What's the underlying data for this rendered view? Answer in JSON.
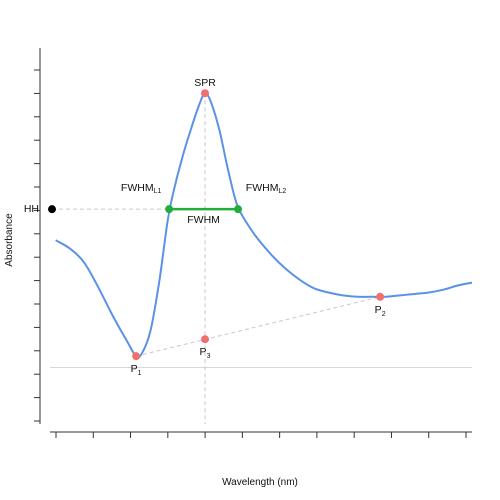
{
  "chart_data": {
    "type": "line",
    "xlabel": "Wavelength (nm)",
    "ylabel": "Absorbance",
    "colors": {
      "curve": "#5b92e5",
      "key_point": "#f07070",
      "fwhm": "#1fae3a",
      "hh_point": "#000000",
      "guide": "#c8c8c8"
    },
    "series": [
      {
        "values": [
          [
            0.0,
            0.45
          ],
          [
            0.5,
            0.42
          ],
          [
            1.0,
            0.37
          ],
          [
            1.5,
            0.28
          ],
          [
            2.0,
            0.18
          ],
          [
            2.5,
            0.09
          ],
          [
            2.8,
            0.04
          ],
          [
            3.0,
            0.05
          ],
          [
            3.3,
            0.13
          ],
          [
            3.6,
            0.3
          ],
          [
            3.9,
            0.52
          ],
          [
            4.1,
            0.62
          ],
          [
            4.4,
            0.74
          ],
          [
            4.7,
            0.84
          ],
          [
            5.0,
            0.93
          ],
          [
            5.2,
            0.97
          ],
          [
            5.4,
            0.94
          ],
          [
            5.7,
            0.84
          ],
          [
            6.0,
            0.7
          ],
          [
            6.3,
            0.58
          ],
          [
            6.6,
            0.52
          ],
          [
            7.0,
            0.46
          ],
          [
            7.5,
            0.4
          ],
          [
            8.0,
            0.35
          ],
          [
            8.5,
            0.31
          ],
          [
            9.0,
            0.28
          ],
          [
            9.5,
            0.265
          ],
          [
            10.0,
            0.255
          ],
          [
            10.5,
            0.25
          ],
          [
            11.0,
            0.25
          ],
          [
            11.5,
            0.25
          ],
          [
            12.0,
            0.255
          ],
          [
            12.5,
            0.26
          ],
          [
            13.0,
            0.265
          ],
          [
            13.5,
            0.275
          ],
          [
            14.0,
            0.29
          ],
          [
            14.5,
            0.3
          ]
        ]
      }
    ],
    "points": [
      {
        "key": "spr",
        "label": "SPR",
        "sub": "",
        "x": 5.2,
        "y": 0.97,
        "label_pos": "above"
      },
      {
        "key": "p1",
        "label": "P",
        "sub": "1",
        "x": 2.8,
        "y": 0.04,
        "label_pos": "below"
      },
      {
        "key": "p2",
        "label": "P",
        "sub": "2",
        "x": 11.3,
        "y": 0.25,
        "label_pos": "below"
      },
      {
        "key": "p3",
        "label": "P",
        "sub": "3",
        "x": 5.2,
        "y": 0.1,
        "label_pos": "below"
      }
    ],
    "fwhm": {
      "label": "FWHM",
      "left_label": "FWHM",
      "left_sub": "L1",
      "right_label": "FWHM",
      "right_sub": "L2",
      "x1": 3.95,
      "x2": 6.35,
      "y": 0.56
    },
    "hh": {
      "label": "HH",
      "y": 0.56
    },
    "xlim": [
      -0.2,
      14.5
    ],
    "ylim": [
      -0.2,
      1.13
    ],
    "x_ticks": 12,
    "y_ticks": 16,
    "tick_labels_shown": false,
    "grid": false
  }
}
